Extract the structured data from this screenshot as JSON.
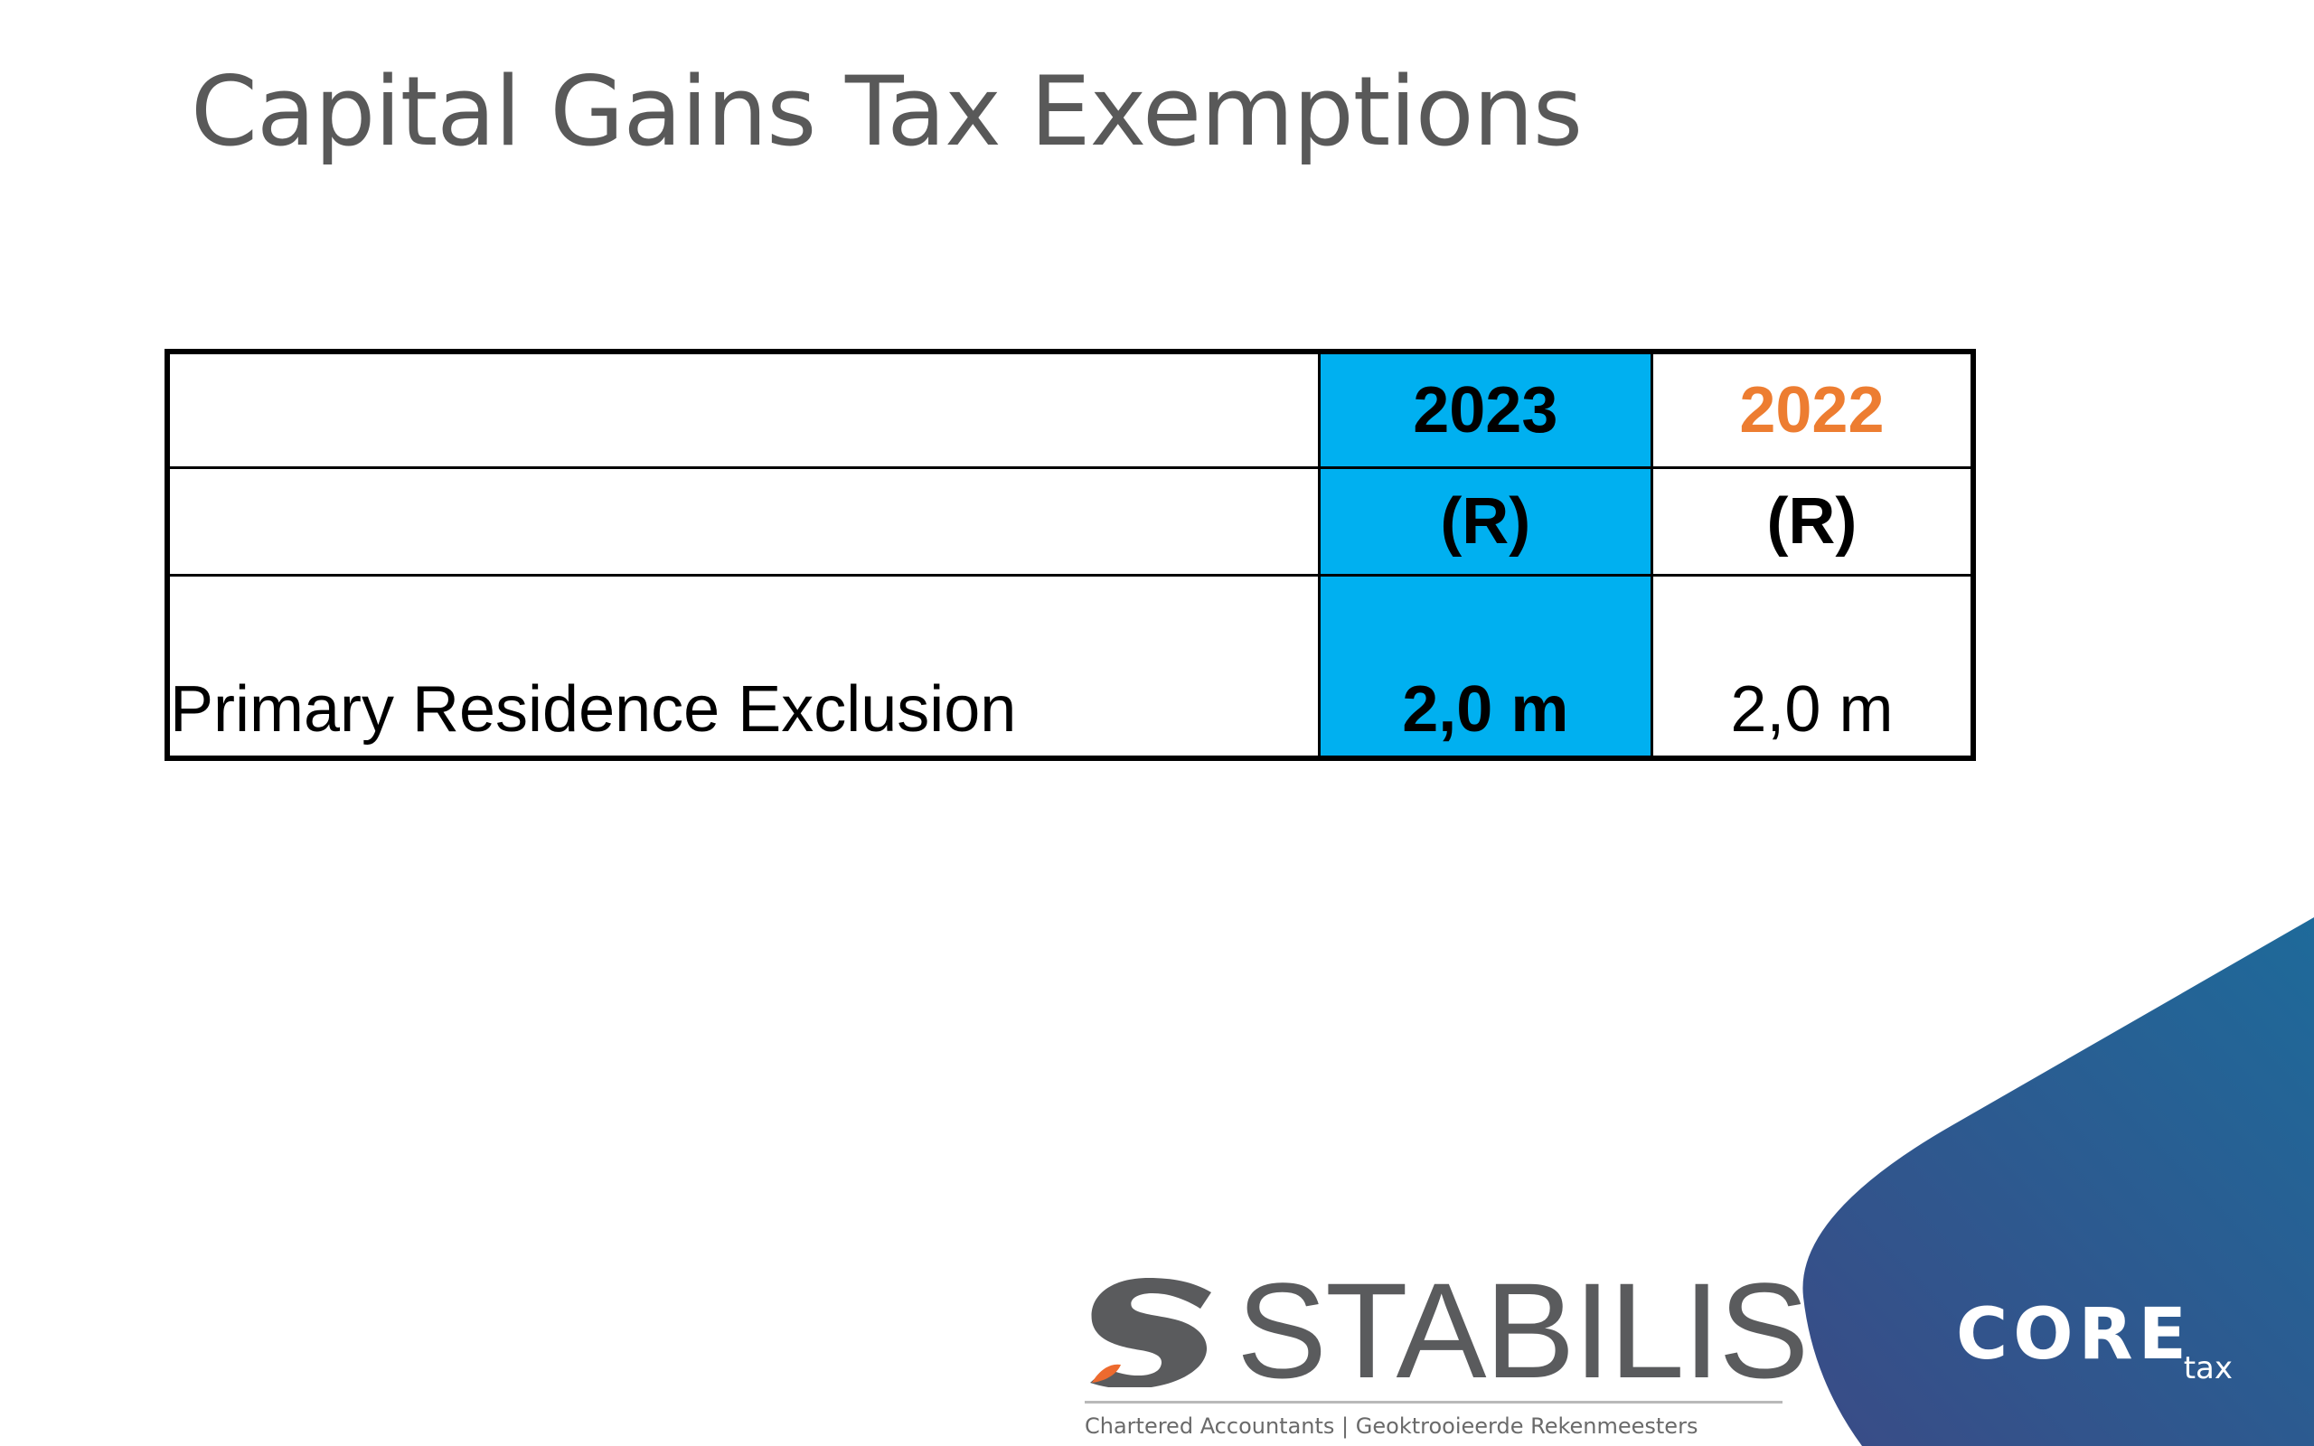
{
  "slide": {
    "title": "Capital Gains Tax Exemptions"
  },
  "table": {
    "header_years": [
      "2023",
      "2022"
    ],
    "header_units": [
      "(R)",
      "(R)"
    ],
    "rows": [
      {
        "label": "Primary Residence Exclusion",
        "values": [
          "2,0 m",
          "2,0 m"
        ]
      }
    ]
  },
  "logos": {
    "stabilis_name": "STABILIS",
    "stabilis_tagline": "Chartered Accountants | Geoktrooieerde Rekenmeesters",
    "core_name": "CORE",
    "core_sub": "tax"
  },
  "colors": {
    "accent_blue": "#00b0f0",
    "accent_orange": "#ed7d31",
    "corner_gradient_top": "#1e6a9a",
    "corner_gradient_bottom": "#3a4b86"
  }
}
